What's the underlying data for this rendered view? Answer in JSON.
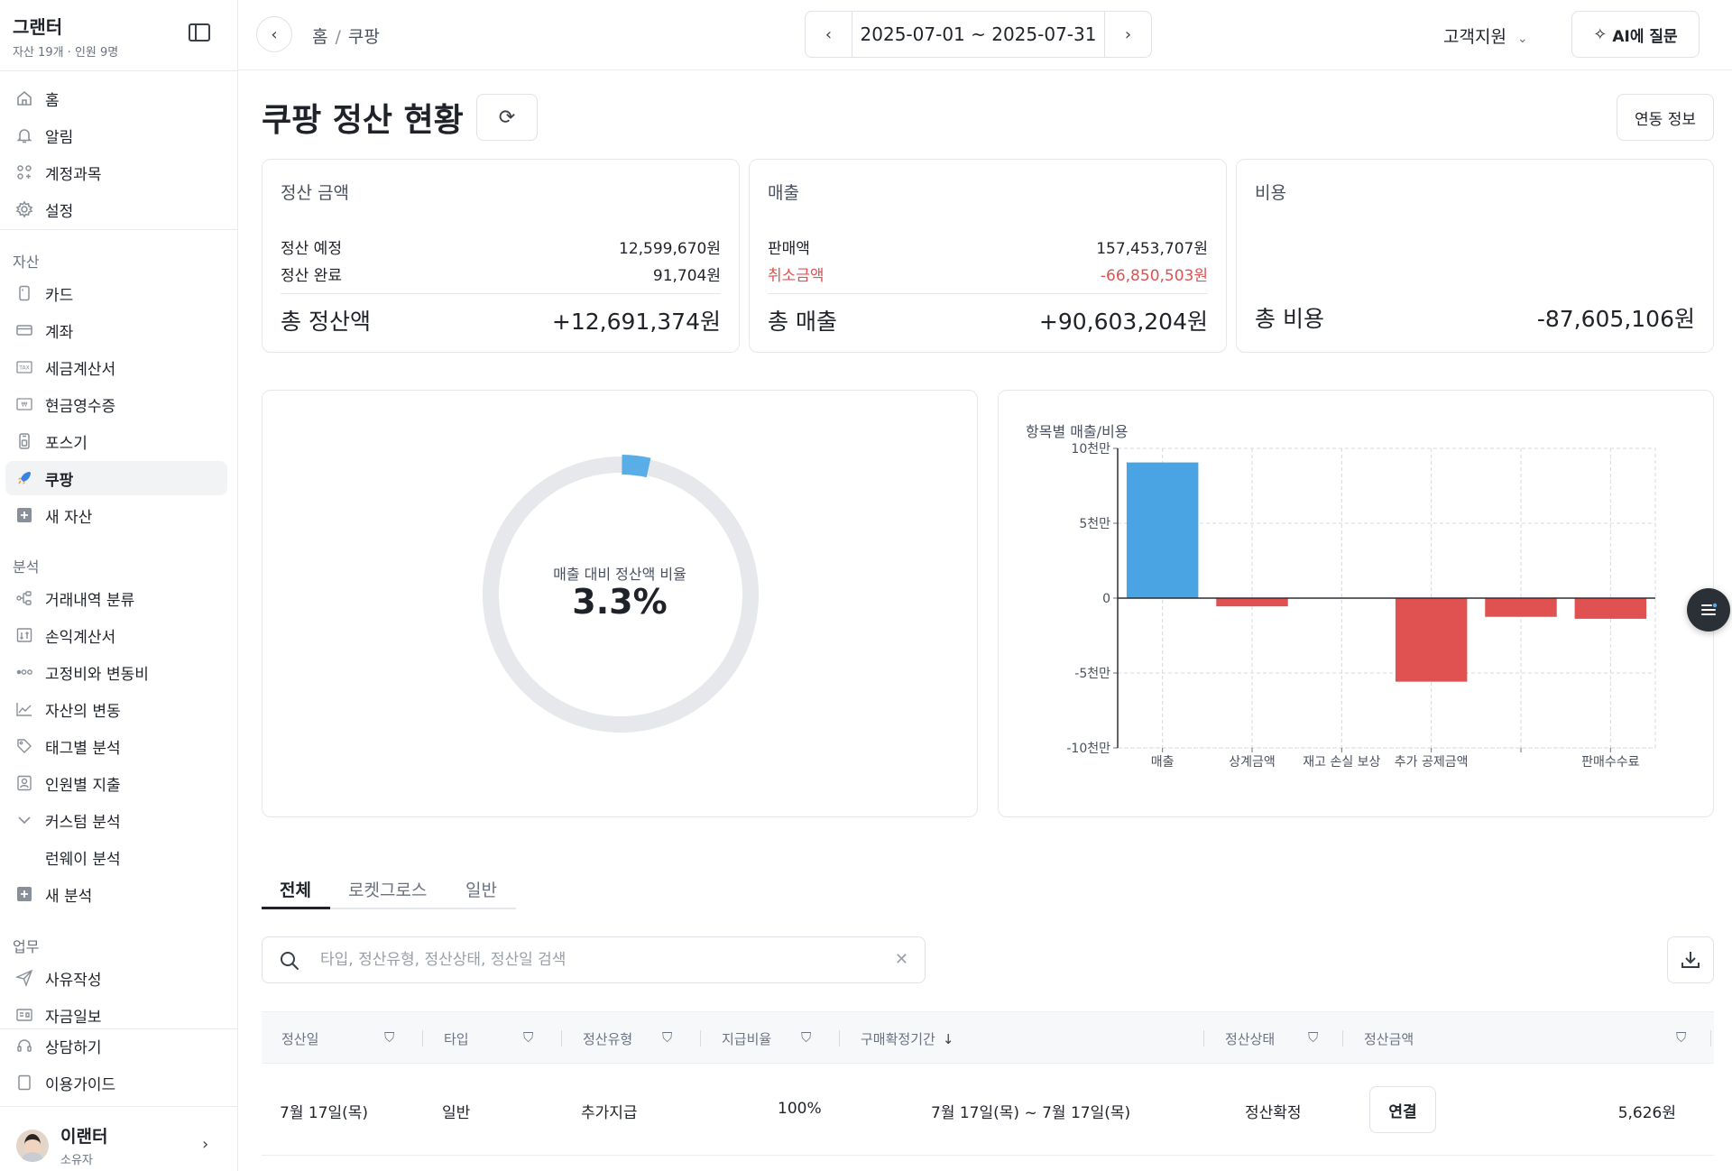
{
  "sidebar": {
    "org_name": "그랜터",
    "org_sub": "자산 19개 · 인원 9명",
    "top_items": [
      {
        "label": "홈",
        "icon": "home-icon"
      },
      {
        "label": "알림",
        "icon": "bell-icon"
      },
      {
        "label": "계정과목",
        "icon": "grid-icon"
      },
      {
        "label": "설정",
        "icon": "gear-icon"
      }
    ],
    "asset_label": "자산",
    "asset_items": [
      {
        "label": "카드",
        "icon": "card-icon"
      },
      {
        "label": "계좌",
        "icon": "bank-icon"
      },
      {
        "label": "세금계산서",
        "icon": "tax-icon"
      },
      {
        "label": "현금영수증",
        "icon": "receipt-icon"
      },
      {
        "label": "포스기",
        "icon": "pos-icon"
      },
      {
        "label": "쿠팡",
        "icon": "rocket-icon"
      },
      {
        "label": "새 자산",
        "icon": "plus-icon"
      }
    ],
    "analysis_label": "분석",
    "analysis_items": [
      {
        "label": "거래내역 분류",
        "icon": "flow-icon"
      },
      {
        "label": "손익계산서",
        "icon": "ledger-icon"
      },
      {
        "label": "고정비와 변동비",
        "icon": "dots-icon"
      },
      {
        "label": "자산의 변동",
        "icon": "trend-icon"
      },
      {
        "label": "태그별 분석",
        "icon": "tag-icon"
      },
      {
        "label": "인원별 지출",
        "icon": "person-icon"
      },
      {
        "label": "커스텀 분석",
        "icon": "chevron-down-icon"
      },
      {
        "label": "런웨이 분석",
        "icon": ""
      },
      {
        "label": "새 분석",
        "icon": "plus-icon"
      }
    ],
    "work_label": "업무",
    "work_items": [
      {
        "label": "사유작성",
        "icon": "send-icon"
      },
      {
        "label": "자금일보",
        "icon": "report-icon"
      }
    ],
    "bottom_items": [
      {
        "label": "상담하기",
        "icon": "headset-icon"
      },
      {
        "label": "이용가이드",
        "icon": "book-icon"
      }
    ],
    "user_name": "이랜터",
    "user_role": "소유자"
  },
  "header": {
    "breadcrumb_home": "홈",
    "breadcrumb_sep": "/",
    "breadcrumb_current": "쿠팡",
    "date_range": "2025-07-01 ~ 2025-07-31",
    "support_label": "고객지원",
    "ai_label": "AI에 질문"
  },
  "page": {
    "title": "쿠팡 정산 현황",
    "link_info_label": "연동 정보"
  },
  "cards": {
    "settlement": {
      "title": "정산 금액",
      "rows": [
        {
          "label": "정산 예정",
          "value": "12,599,670원"
        },
        {
          "label": "정산 완료",
          "value": "91,704원"
        }
      ],
      "total_label": "총 정산액",
      "total_value": "+12,691,374원"
    },
    "sales": {
      "title": "매출",
      "rows": [
        {
          "label": "판매액",
          "value": "157,453,707원"
        },
        {
          "label": "취소금액",
          "value": "-66,850,503원"
        }
      ],
      "total_label": "총 매출",
      "total_value": "+90,603,204원"
    },
    "cost": {
      "title": "비용",
      "total_label": "총 비용",
      "total_value": "-87,605,106원"
    }
  },
  "donut": {
    "label": "매출 대비 정산액 비율",
    "value_text": "3.3%",
    "ratio": 0.033,
    "fill_color": "#5aaee8",
    "track_color": "#e6e8eb"
  },
  "chart_data": {
    "type": "bar",
    "title": "항목별 매출/비용",
    "categories": [
      "매출",
      "상계금액",
      "재고 손실 보상",
      "추가 공제금액",
      "",
      "판매수수료"
    ],
    "x_tick_labels": [
      "매출",
      "상계금액",
      "재고 손실 보상",
      "추가 공제금액",
      "",
      "판매수수료"
    ],
    "values": [
      90603204,
      -5500000,
      0,
      -55800000,
      -12500000,
      -13800000
    ],
    "y_ticks": [
      100000000,
      50000000,
      0,
      -50000000,
      -100000000
    ],
    "y_tick_labels": [
      "10천만",
      "5천만",
      "0",
      "-5천만",
      "-10천만"
    ],
    "ylim": [
      -100000000,
      100000000
    ],
    "grid": true,
    "positive_color": "#4aa3e3",
    "negative_color": "#e05252"
  },
  "tabs": [
    "전체",
    "로켓그로스",
    "일반"
  ],
  "search": {
    "placeholder": "타입, 정산유형, 정산상태, 정산일 검색"
  },
  "table": {
    "columns": [
      "정산일",
      "타입",
      "정산유형",
      "지급비율",
      "구매확정기간",
      "정산상태",
      "정산금액"
    ],
    "rows": [
      {
        "date": "7월 17일(목)",
        "type": "일반",
        "settle_type": "추가지급",
        "ratio": "100%",
        "period": "7월 17일(목) ~ 7월 17일(목)",
        "status": "정산확정",
        "action": "연결",
        "amount": "5,626원"
      }
    ]
  }
}
